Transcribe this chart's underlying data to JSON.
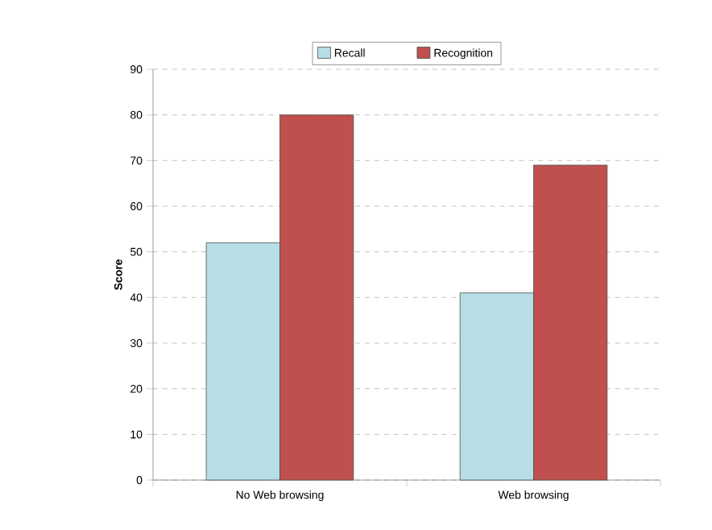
{
  "chart_data": {
    "type": "bar",
    "ylabel": "Score",
    "categories": [
      "No Web browsing",
      "Web browsing"
    ],
    "series": [
      {
        "name": "Recall",
        "color": "#b7dde5",
        "values": [
          52,
          41
        ]
      },
      {
        "name": "Recognition",
        "color": "#c0504d",
        "values": [
          80,
          69
        ]
      }
    ],
    "ylim": [
      0,
      90
    ],
    "yticks": [
      0,
      10,
      20,
      30,
      40,
      50,
      60,
      70,
      80,
      90
    ],
    "grid": "y",
    "legend": "top"
  }
}
